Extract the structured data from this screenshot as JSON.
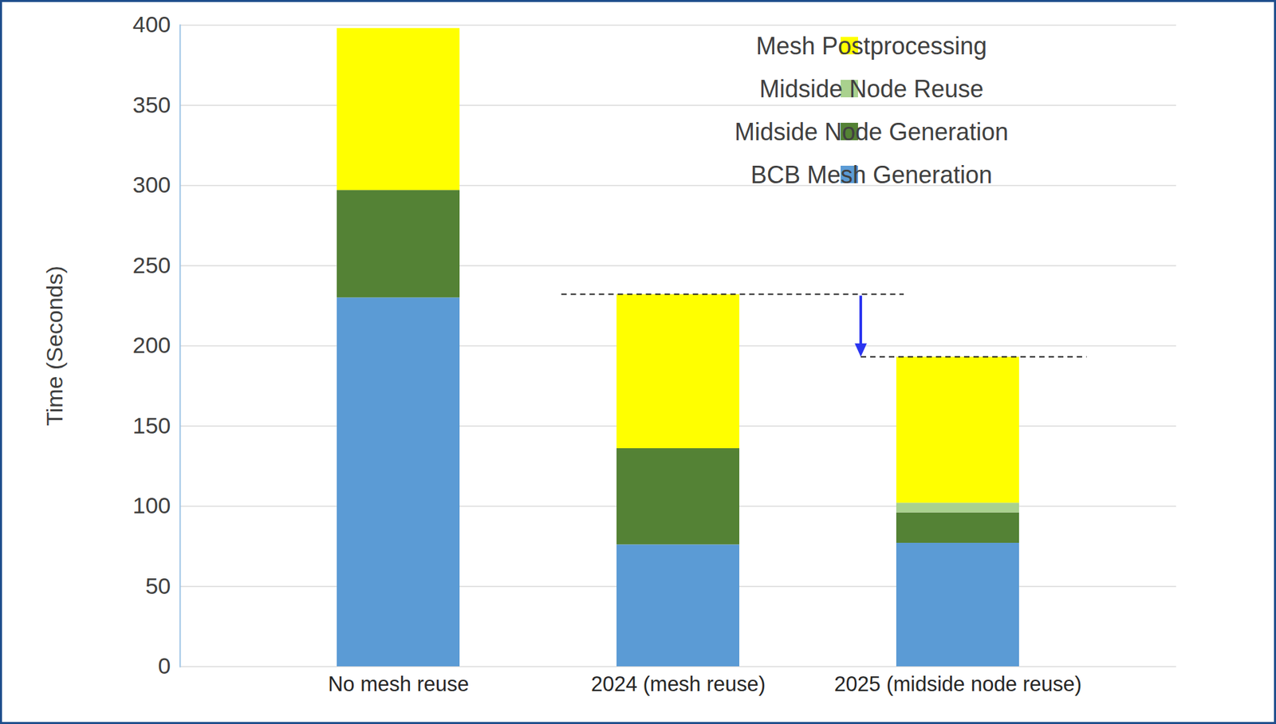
{
  "chart_data": {
    "type": "bar",
    "stacked": true,
    "categories": [
      "No mesh reuse",
      "2024 (mesh reuse)",
      "2025 (midside node reuse)"
    ],
    "ylabel": "Time (Seconds)",
    "ylim": [
      0,
      400
    ],
    "yticks": [
      0,
      50,
      100,
      150,
      200,
      250,
      300,
      350,
      400
    ],
    "grid": true,
    "legend": "top-right",
    "series": [
      {
        "name": "BCB Mesh Generation",
        "color": "#5b9bd5",
        "values": [
          230,
          76,
          77
        ]
      },
      {
        "name": "Midside Node Generation",
        "color": "#548235",
        "values": [
          67,
          60,
          19
        ]
      },
      {
        "name": "Midside Node Reuse",
        "color": "#a9d18e",
        "values": [
          0,
          0,
          6
        ]
      },
      {
        "name": "Mesh Postprocessing",
        "color": "#ffff00",
        "values": [
          101,
          96,
          91
        ]
      }
    ]
  }
}
